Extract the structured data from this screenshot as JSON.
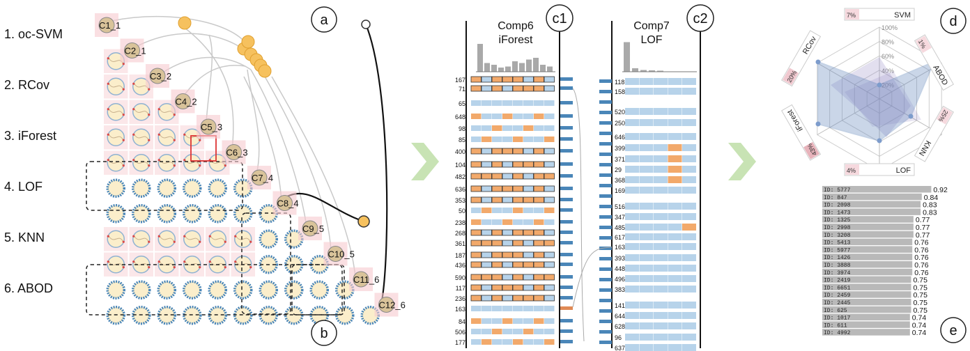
{
  "panel_a": {
    "letter": "a",
    "bottom_letter": "b",
    "model_labels": [
      "1. oc-SVM",
      "2. RCov",
      "3. iForest",
      "4. LOF",
      "5. KNN",
      "6. ABOD"
    ],
    "cluster_labels": [
      "C1_1",
      "C2_1",
      "C3_2",
      "C4_2",
      "C5_3",
      "C6_3",
      "C7_4",
      "C8_4",
      "C9_5",
      "C10_5",
      "C11_6",
      "C12_6"
    ]
  },
  "panel_c": {
    "letter_c1": "c1",
    "letter_c2": "c2",
    "comp6": {
      "title": "Comp6",
      "subtitle": "iForest",
      "rows": [
        "167",
        "71",
        "65",
        "648",
        "98",
        "85",
        "400",
        "104",
        "482",
        "636",
        "353",
        "50",
        "238",
        "268",
        "361",
        "187",
        "436",
        "590",
        "117",
        "236",
        "163",
        "84",
        "506",
        "177"
      ]
    },
    "comp7": {
      "title": "Comp7",
      "subtitle": "LOF",
      "rows": [
        "118",
        "158",
        "520",
        "250",
        "646",
        "399",
        "371",
        "29",
        "368",
        "169",
        "516",
        "347",
        "485",
        "617",
        "163",
        "393",
        "448",
        "496",
        "383",
        "141",
        "644",
        "628",
        "96",
        "637"
      ]
    }
  },
  "panel_d": {
    "letter": "d",
    "axes": [
      {
        "name": "SVM",
        "pct": "7%"
      },
      {
        "name": "ABOD",
        "pct": "1%"
      },
      {
        "name": "KNN",
        "pct": "25%"
      },
      {
        "name": "LOF",
        "pct": "4%"
      },
      {
        "name": "iForest",
        "pct": "43%"
      },
      {
        "name": "RCov",
        "pct": "20%"
      }
    ],
    "rings": [
      "100%",
      "80%",
      "60%",
      "40%",
      "20%"
    ]
  },
  "panel_e": {
    "letter": "e",
    "rows": [
      {
        "id": "ID: 5777",
        "v": "0.92",
        "f": 0.92
      },
      {
        "id": "ID: 847",
        "v": "0.84",
        "f": 0.84
      },
      {
        "id": "ID: 2098",
        "v": "0.83",
        "f": 0.83
      },
      {
        "id": "ID: 1473",
        "v": "0.83",
        "f": 0.83
      },
      {
        "id": "ID: 1325",
        "v": "0.77",
        "f": 0.77
      },
      {
        "id": "ID: 2998",
        "v": "0.77",
        "f": 0.77
      },
      {
        "id": "ID: 3208",
        "v": "0.77",
        "f": 0.77
      },
      {
        "id": "ID: 5413",
        "v": "0.76",
        "f": 0.76
      },
      {
        "id": "ID: 5977",
        "v": "0.76",
        "f": 0.76
      },
      {
        "id": "ID: 1426",
        "v": "0.76",
        "f": 0.76
      },
      {
        "id": "ID: 3888",
        "v": "0.76",
        "f": 0.76
      },
      {
        "id": "ID: 3974",
        "v": "0.76",
        "f": 0.76
      },
      {
        "id": "ID: 2419",
        "v": "0.75",
        "f": 0.75
      },
      {
        "id": "ID: 6651",
        "v": "0.75",
        "f": 0.75
      },
      {
        "id": "ID: 2459",
        "v": "0.75",
        "f": 0.75
      },
      {
        "id": "ID: 2445",
        "v": "0.75",
        "f": 0.75
      },
      {
        "id": "ID: 625",
        "v": "0.75",
        "f": 0.75
      },
      {
        "id": "ID: 1017",
        "v": "0.74",
        "f": 0.74
      },
      {
        "id": "ID: 611",
        "v": "0.74",
        "f": 0.74
      },
      {
        "id": "ID: 4992",
        "v": "0.74",
        "f": 0.74
      }
    ]
  },
  "colors": {
    "blue": "#4a86b8",
    "lightblue": "#b7d3ea",
    "orange": "#f2a96b",
    "pink": "#f6c9cf",
    "tan": "#d9c39a",
    "gold": "#f6c15e",
    "green": "#c8e3b4",
    "grey": "#a9a9a9"
  }
}
